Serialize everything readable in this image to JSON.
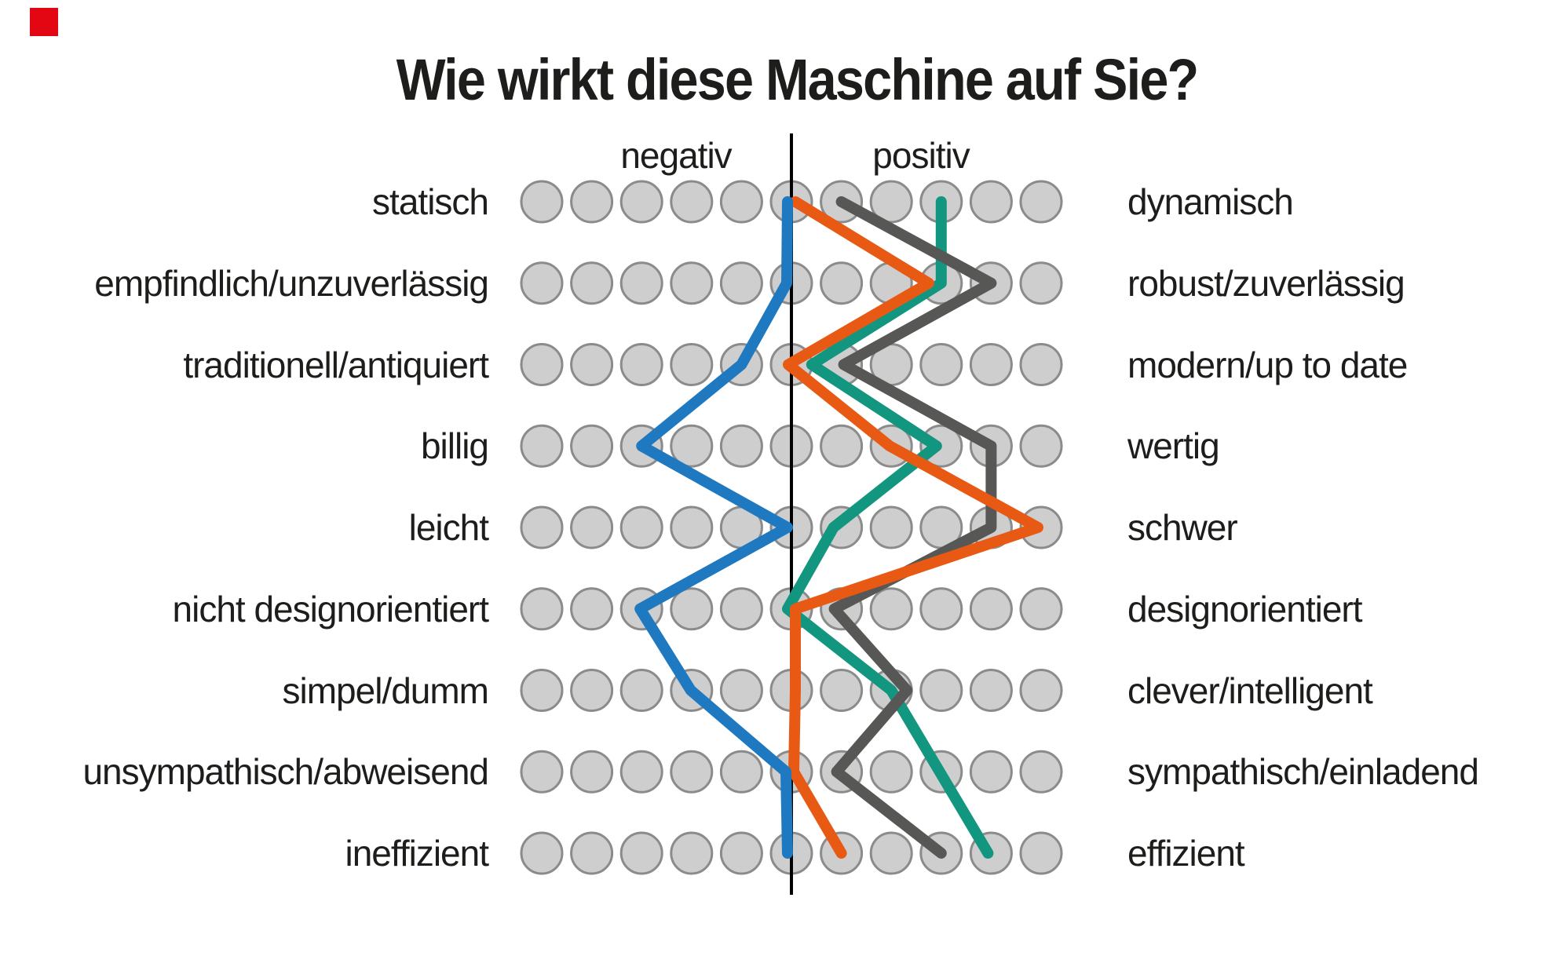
{
  "page_title": "Wie wirkt diese Maschine auf Sie?",
  "marker": {
    "color": "#e30613"
  },
  "axis": {
    "negative_label": "negativ",
    "positive_label": "positiv"
  },
  "rows": [
    {
      "left": "statisch",
      "right": "dynamisch"
    },
    {
      "left": "empfindlich/unzuverlässig",
      "right": "robust/zuverlässig"
    },
    {
      "left": "traditionell/antiquiert",
      "right": "modern/up to date"
    },
    {
      "left": "billig",
      "right": "wertig"
    },
    {
      "left": "leicht",
      "right": "schwer"
    },
    {
      "left": "nicht designorientiert",
      "right": "designorientiert"
    },
    {
      "left": "simpel/dumm",
      "right": "clever/intelligent"
    },
    {
      "left": "unsympathisch/abweisend",
      "right": "sympathisch/einladend"
    },
    {
      "left": "ineffizient",
      "right": "effizient"
    }
  ],
  "chart_data": {
    "type": "line",
    "variant": "semantic-differential-profile",
    "title": "Wie wirkt diese Maschine auf Sie?",
    "xlabel_negative": "negativ",
    "xlabel_positive": "positiv",
    "scale": {
      "min": -5,
      "max": 5,
      "neutral": 0,
      "circles_per_row": 11
    },
    "categories_negative": [
      "statisch",
      "empfindlich/unzuverlässig",
      "traditionell/antiquiert",
      "billig",
      "leicht",
      "nicht designorientiert",
      "simpel/dumm",
      "unsympathisch/abweisend",
      "ineffizient"
    ],
    "categories_positive": [
      "dynamisch",
      "robust/zuverlässig",
      "modern/up to date",
      "wertig",
      "schwer",
      "designorientiert",
      "clever/intelligent",
      "sympathisch/einladend",
      "effizient"
    ],
    "series": [
      {
        "name": "teal",
        "color": "#13967f",
        "values": [
          3,
          3,
          0.5,
          3,
          1,
          0,
          2,
          3,
          4
        ]
      },
      {
        "name": "gray",
        "color": "#575756",
        "values": [
          1,
          4,
          1,
          4,
          4,
          1,
          2,
          1,
          3
        ]
      },
      {
        "name": "orange",
        "color": "#e85a14",
        "values": [
          0,
          3,
          0,
          2,
          5,
          0,
          0,
          0,
          1
        ]
      },
      {
        "name": "blue",
        "color": "#1e79c0",
        "values": [
          0,
          0,
          -1,
          -3,
          0,
          -3,
          -2,
          0,
          0
        ]
      }
    ],
    "grid": {
      "circle_fill": "#cecece",
      "circle_stroke": "#8b8b8b"
    },
    "legend": "none"
  }
}
